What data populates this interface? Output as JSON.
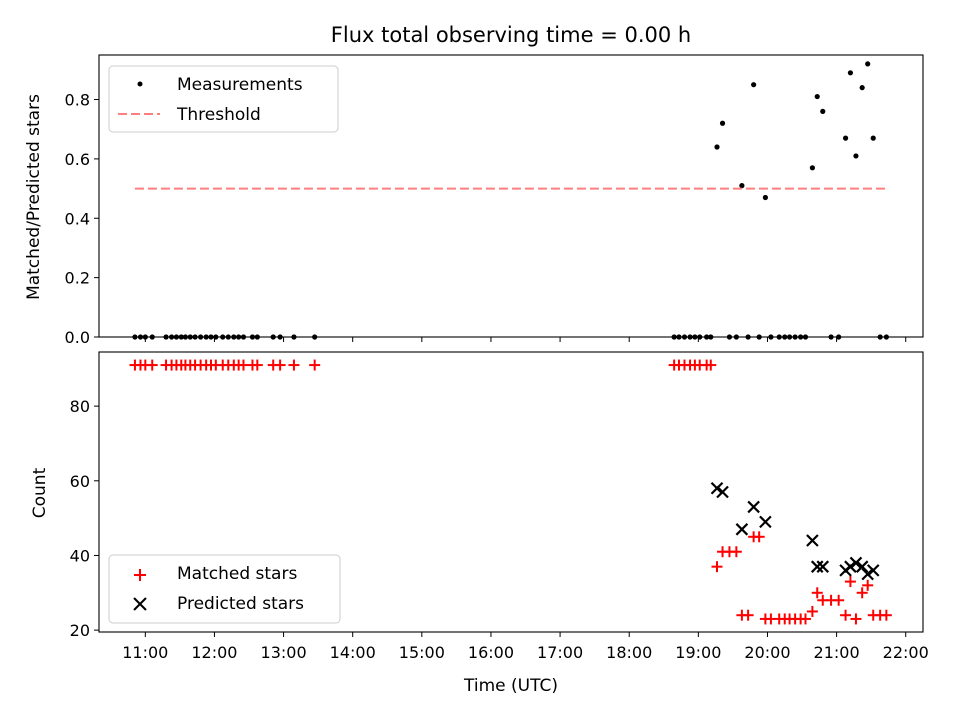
{
  "chart_data": [
    {
      "type": "scatter",
      "title": "Flux total observing time = 0.00 h",
      "xlabel": "",
      "ylabel": "Matched/Predicted stars",
      "xlim": [
        10.33,
        22.25
      ],
      "ylim": [
        0.0,
        0.95
      ],
      "yticks": [
        0.0,
        0.2,
        0.4,
        0.6,
        0.8
      ],
      "ytick_labels": [
        "0.0",
        "0.2",
        "0.4",
        "0.6",
        "0.8"
      ],
      "legend_position": "upper-left",
      "series": [
        {
          "name": "Measurements",
          "marker": "dot",
          "color": "#000000",
          "points": [
            [
              10.85,
              0
            ],
            [
              10.93,
              0
            ],
            [
              11.0,
              0
            ],
            [
              11.1,
              0
            ],
            [
              11.3,
              0
            ],
            [
              11.38,
              0
            ],
            [
              11.45,
              0
            ],
            [
              11.52,
              0
            ],
            [
              11.58,
              0
            ],
            [
              11.65,
              0
            ],
            [
              11.72,
              0
            ],
            [
              11.8,
              0
            ],
            [
              11.88,
              0
            ],
            [
              11.95,
              0
            ],
            [
              12.02,
              0
            ],
            [
              12.12,
              0
            ],
            [
              12.2,
              0
            ],
            [
              12.28,
              0
            ],
            [
              12.35,
              0
            ],
            [
              12.42,
              0
            ],
            [
              12.55,
              0
            ],
            [
              12.62,
              0
            ],
            [
              12.85,
              0
            ],
            [
              12.95,
              0
            ],
            [
              13.15,
              0
            ],
            [
              13.45,
              0
            ],
            [
              18.65,
              0
            ],
            [
              18.72,
              0
            ],
            [
              18.8,
              0
            ],
            [
              18.88,
              0
            ],
            [
              18.95,
              0
            ],
            [
              19.02,
              0
            ],
            [
              19.12,
              0
            ],
            [
              19.18,
              0
            ],
            [
              19.27,
              0.64
            ],
            [
              19.35,
              0.72
            ],
            [
              19.45,
              0
            ],
            [
              19.55,
              0
            ],
            [
              19.63,
              0.51
            ],
            [
              19.72,
              0
            ],
            [
              19.8,
              0.85
            ],
            [
              19.88,
              0
            ],
            [
              19.97,
              0.47
            ],
            [
              20.05,
              0
            ],
            [
              20.17,
              0
            ],
            [
              20.25,
              0
            ],
            [
              20.32,
              0
            ],
            [
              20.4,
              0
            ],
            [
              20.48,
              0
            ],
            [
              20.55,
              0
            ],
            [
              20.65,
              0.57
            ],
            [
              20.72,
              0.81
            ],
            [
              20.8,
              0.76
            ],
            [
              20.92,
              0
            ],
            [
              21.03,
              0
            ],
            [
              21.13,
              0.67
            ],
            [
              21.2,
              0.89
            ],
            [
              21.28,
              0.61
            ],
            [
              21.37,
              0.84
            ],
            [
              21.45,
              0.92
            ],
            [
              21.53,
              0.67
            ],
            [
              21.63,
              0
            ],
            [
              21.72,
              0
            ]
          ]
        },
        {
          "name": "Threshold",
          "marker": "dashed-line",
          "color": "#ff7f7f",
          "points": [
            [
              10.85,
              0.5
            ],
            [
              21.72,
              0.5
            ]
          ]
        }
      ]
    },
    {
      "type": "scatter",
      "title": "",
      "xlabel": "Time (UTC)",
      "ylabel": "Count",
      "xlim": [
        10.33,
        22.25
      ],
      "ylim": [
        19.5,
        94.5
      ],
      "yticks": [
        20,
        40,
        60,
        80
      ],
      "ytick_labels": [
        "20",
        "40",
        "60",
        "80"
      ],
      "xticks": [
        11,
        12,
        13,
        14,
        15,
        16,
        17,
        18,
        19,
        20,
        21,
        22
      ],
      "xtick_labels": [
        "11:00",
        "12:00",
        "13:00",
        "14:00",
        "15:00",
        "16:00",
        "17:00",
        "18:00",
        "19:00",
        "20:00",
        "21:00",
        "22:00"
      ],
      "legend_position": "lower-left",
      "series": [
        {
          "name": "Matched stars",
          "marker": "plus",
          "color": "#ff0000",
          "points": [
            [
              10.85,
              91
            ],
            [
              10.93,
              91
            ],
            [
              11.0,
              91
            ],
            [
              11.1,
              91
            ],
            [
              11.3,
              91
            ],
            [
              11.38,
              91
            ],
            [
              11.45,
              91
            ],
            [
              11.52,
              91
            ],
            [
              11.58,
              91
            ],
            [
              11.65,
              91
            ],
            [
              11.72,
              91
            ],
            [
              11.8,
              91
            ],
            [
              11.88,
              91
            ],
            [
              11.95,
              91
            ],
            [
              12.02,
              91
            ],
            [
              12.12,
              91
            ],
            [
              12.2,
              91
            ],
            [
              12.28,
              91
            ],
            [
              12.35,
              91
            ],
            [
              12.42,
              91
            ],
            [
              12.55,
              91
            ],
            [
              12.62,
              91
            ],
            [
              12.85,
              91
            ],
            [
              12.95,
              91
            ],
            [
              13.15,
              91
            ],
            [
              13.45,
              91
            ],
            [
              18.65,
              91
            ],
            [
              18.72,
              91
            ],
            [
              18.8,
              91
            ],
            [
              18.88,
              91
            ],
            [
              18.95,
              91
            ],
            [
              19.02,
              91
            ],
            [
              19.12,
              91
            ],
            [
              19.18,
              91
            ],
            [
              19.27,
              37
            ],
            [
              19.35,
              41
            ],
            [
              19.45,
              41
            ],
            [
              19.55,
              41
            ],
            [
              19.63,
              24
            ],
            [
              19.72,
              24
            ],
            [
              19.8,
              45
            ],
            [
              19.88,
              45
            ],
            [
              19.97,
              23
            ],
            [
              20.05,
              23
            ],
            [
              20.17,
              23
            ],
            [
              20.25,
              23
            ],
            [
              20.32,
              23
            ],
            [
              20.4,
              23
            ],
            [
              20.48,
              23
            ],
            [
              20.55,
              23
            ],
            [
              20.65,
              25
            ],
            [
              20.72,
              30
            ],
            [
              20.8,
              28
            ],
            [
              20.92,
              28
            ],
            [
              21.03,
              28
            ],
            [
              21.13,
              24
            ],
            [
              21.2,
              33
            ],
            [
              21.28,
              23
            ],
            [
              21.37,
              30
            ],
            [
              21.45,
              32
            ],
            [
              21.53,
              24
            ],
            [
              21.63,
              24
            ],
            [
              21.72,
              24
            ]
          ]
        },
        {
          "name": "Predicted stars",
          "marker": "x",
          "color": "#000000",
          "points": [
            [
              19.27,
              58
            ],
            [
              19.35,
              57
            ],
            [
              19.63,
              47
            ],
            [
              19.8,
              53
            ],
            [
              19.97,
              49
            ],
            [
              20.65,
              44
            ],
            [
              20.72,
              37
            ],
            [
              20.8,
              37
            ],
            [
              21.13,
              36
            ],
            [
              21.2,
              37
            ],
            [
              21.28,
              38
            ],
            [
              21.37,
              37
            ],
            [
              21.45,
              35
            ],
            [
              21.53,
              36
            ]
          ]
        }
      ]
    }
  ]
}
